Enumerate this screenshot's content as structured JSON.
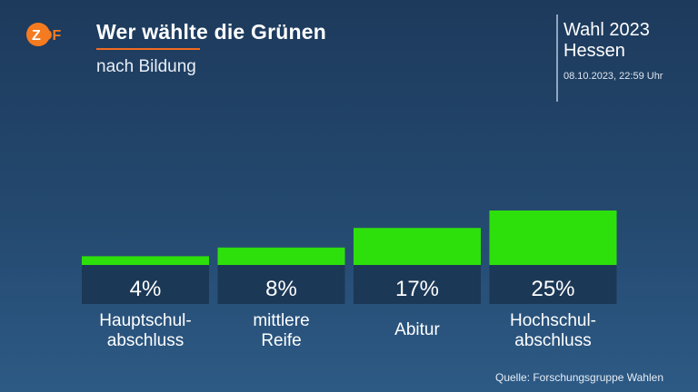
{
  "header": {
    "title": "Wer wählte die Grünen",
    "subtitle": "nach Bildung",
    "election_line1": "Wahl 2023",
    "election_line2": "Hessen",
    "timestamp": "08.10.2023, 22:59 Uhr",
    "logo_text": "ZDF"
  },
  "footer": {
    "source": "Quelle: Forschungsgruppe Wahlen"
  },
  "colors": {
    "bar": "#2ee00b",
    "value_box": "#1c3857",
    "accent": "#f26a21",
    "logo": "#f57b20"
  },
  "chart_data": {
    "type": "bar",
    "title": "Wer wählte die Grünen",
    "subtitle": "nach Bildung",
    "categories": [
      [
        "Hauptschul-",
        "abschluss"
      ],
      [
        "mittlere",
        "Reife"
      ],
      [
        "Abitur"
      ],
      [
        "Hochschul-",
        "abschluss"
      ]
    ],
    "values": [
      4,
      8,
      17,
      25
    ],
    "value_labels": [
      "4%",
      "8%",
      "17%",
      "25%"
    ],
    "unit": "%",
    "grid": false
  }
}
